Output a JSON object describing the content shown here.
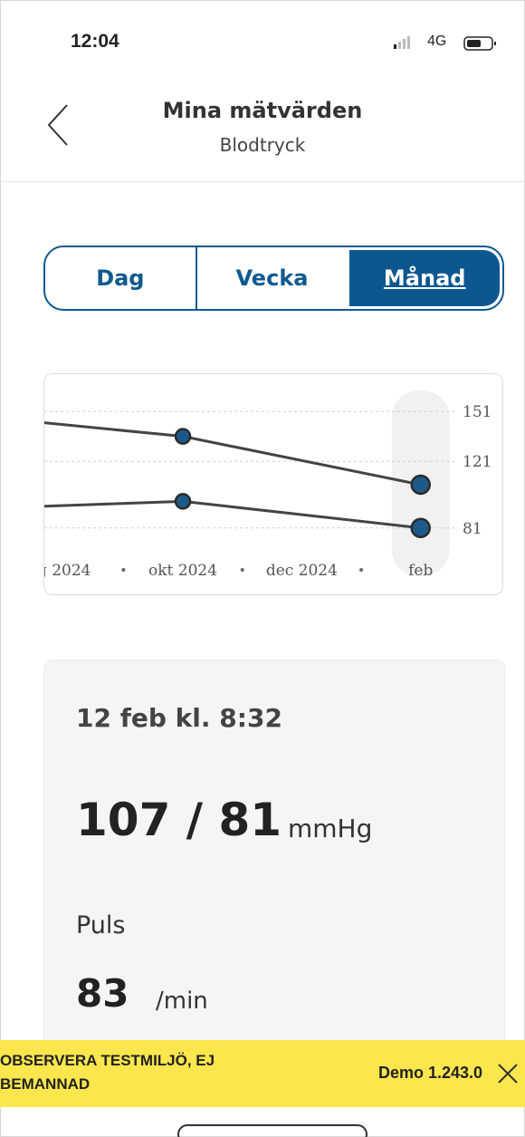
{
  "status_bar": {
    "time": "12:04",
    "network": "4G"
  },
  "header": {
    "title": "Mina mätvärden",
    "subtitle": "Blodtryck"
  },
  "tabs": {
    "items": [
      "Dag",
      "Vecka",
      "Månad"
    ],
    "selected": 2
  },
  "chart_data": {
    "type": "line",
    "xlim": [
      7.7,
      14.4
    ],
    "xticks": [
      {
        "value": 8,
        "label": "g 2024"
      },
      {
        "value": 10,
        "label": "okt 2024"
      },
      {
        "value": 12,
        "label": "dec 2024"
      },
      {
        "value": 14,
        "label": "feb"
      }
    ],
    "ylim": [
      70,
      169
    ],
    "yticks": [
      151,
      121,
      81
    ],
    "grid": true,
    "series": [
      {
        "color": "#444444",
        "point_color": "#1d5a8c",
        "x": [
          6,
          10,
          14
        ],
        "values": [
          150,
          136,
          107
        ]
      },
      {
        "color": "#444444",
        "point_color": "#1d5a8c",
        "x": [
          6,
          10,
          14
        ],
        "values": [
          92,
          97,
          81
        ]
      }
    ]
  },
  "reading": {
    "time": "12 feb kl. 8:32",
    "pressure": "107 / 81",
    "pressure_unit": "mmHg",
    "pulse_label": "Puls",
    "pulse": "83",
    "pulse_unit": "/min"
  },
  "banner": {
    "text": "OBSERVERA TESTMILJÖ, EJ BEMANNAD",
    "version": "Demo 1.243.0"
  }
}
